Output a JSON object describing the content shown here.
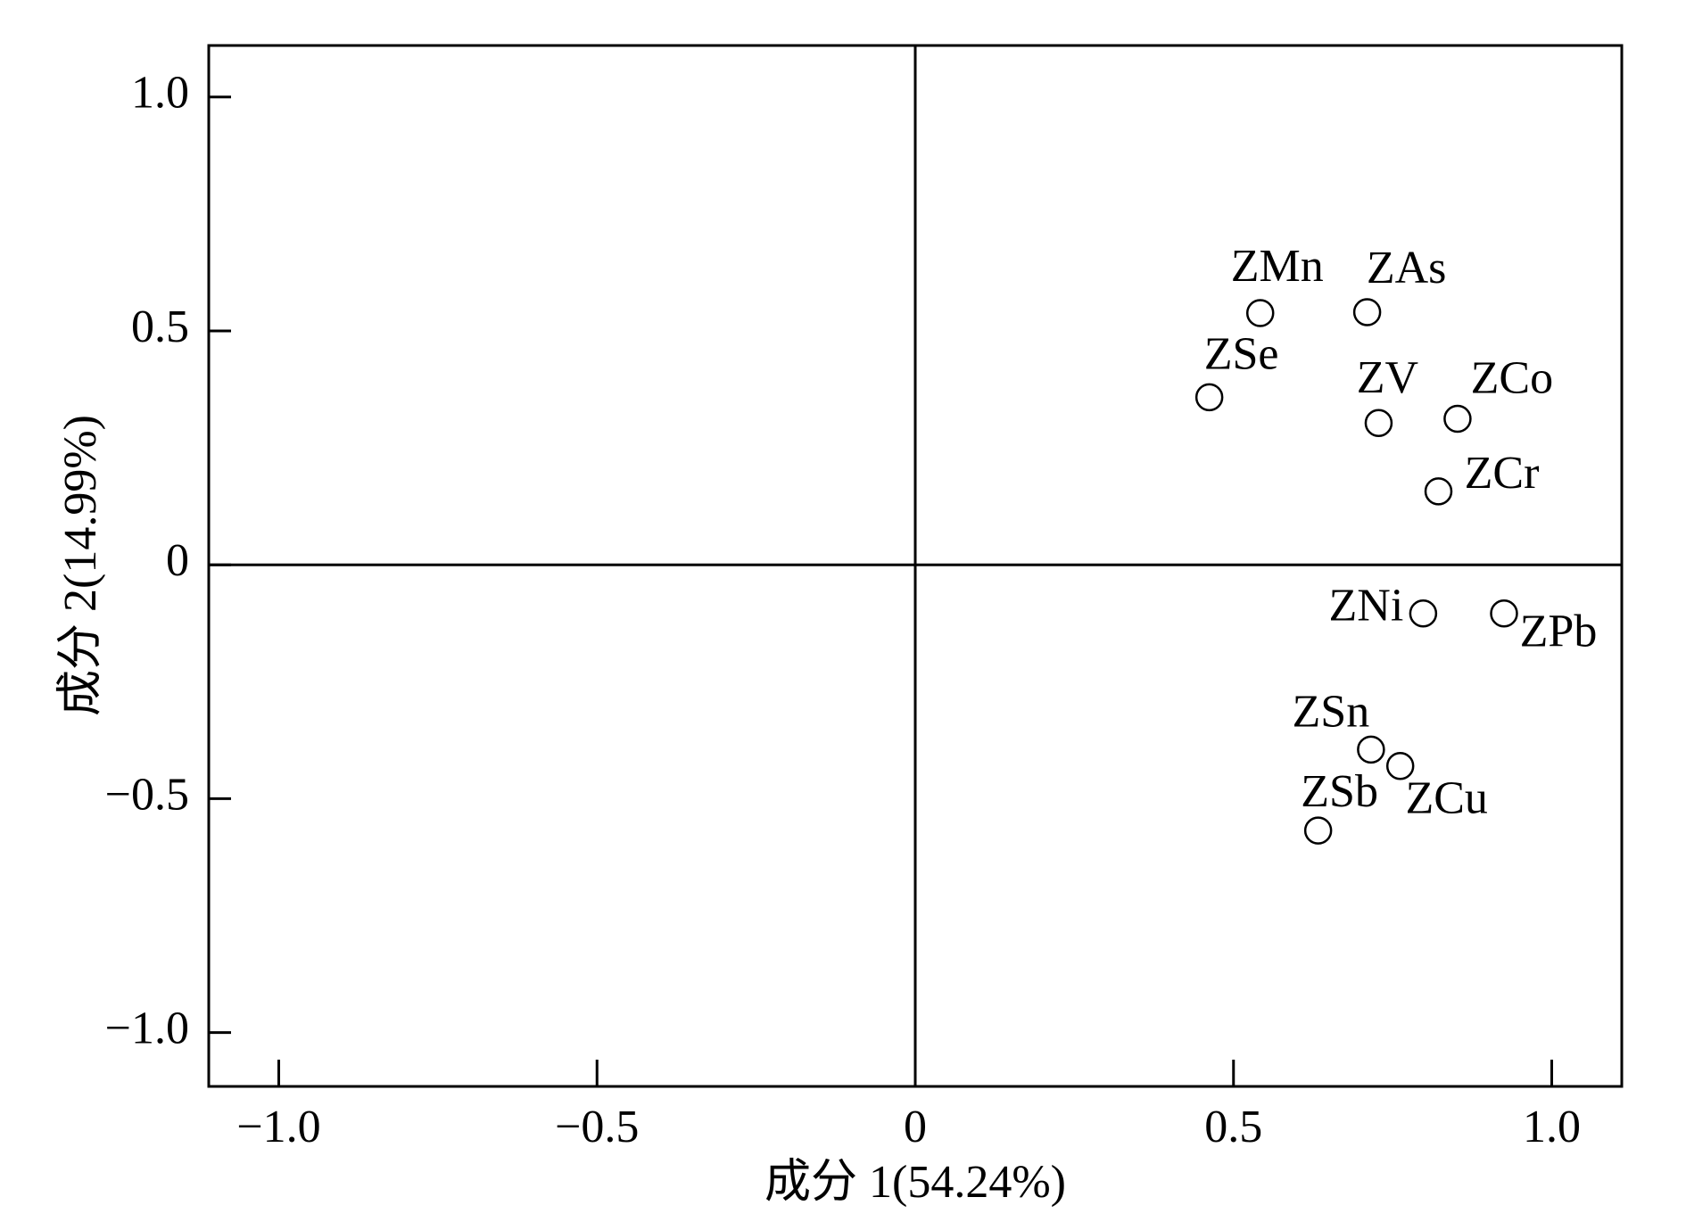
{
  "chart_data": {
    "type": "scatter",
    "x_label": "成分 1(54.24%)",
    "y_label": "成分 2(14.99%)",
    "xlim": [
      -1.11,
      1.11
    ],
    "ylim": [
      -1.115,
      1.11
    ],
    "xticks": [
      {
        "value": -1.0,
        "label": "−1.0"
      },
      {
        "value": -0.5,
        "label": "−0.5"
      },
      0,
      0.5,
      {
        "value": 1.0,
        "label": "1.0"
      }
    ],
    "yticks": [
      {
        "value": -1.0,
        "label": "−1.0"
      },
      {
        "value": -0.5,
        "label": "−0.5"
      },
      0,
      0.5,
      {
        "value": 1.0,
        "label": "1.0"
      }
    ],
    "zero_lines": true,
    "color": "#000000",
    "point_labels": [
      "ZMn",
      "ZAs",
      "ZSe",
      "ZV",
      "ZCo",
      "ZCr",
      "ZNi",
      "ZPb",
      "ZSn",
      "ZCu",
      "ZSb"
    ],
    "x": [
      0.542,
      0.71,
      0.462,
      0.728,
      0.852,
      0.822,
      0.798,
      0.925,
      0.716,
      0.762,
      0.633
    ],
    "y": [
      0.538,
      0.54,
      0.358,
      0.303,
      0.312,
      0.157,
      -0.104,
      -0.104,
      -0.395,
      -0.43,
      -0.568
    ]
  }
}
